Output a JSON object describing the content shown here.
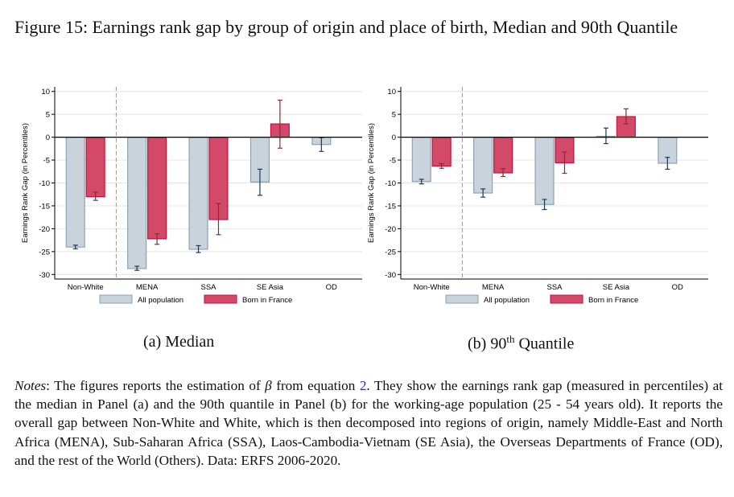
{
  "title": "Figure 15: Earnings rank gap by group of origin and place of birth, Median and 90th Quantile",
  "captions": {
    "a": "(a) Median",
    "b_prefix": "(b) 90",
    "b_sup": "th",
    "b_suffix": " Quantile"
  },
  "notes": {
    "label": "Notes",
    "pre": ": The figures reports the estimation of ",
    "beta": "β",
    "mid": " from equation ",
    "ref": "2",
    "post": ". They show the earnings rank gap (measured in percentiles) at the median in Panel (a) and the 90th quantile in Panel (b) for the working-age population (25 - 54 years old). It reports the overall gap between Non-White and White, which is then decomposed into regions of origin, namely Middle-East and North Africa (MENA), Sub-Saharan Africa (SSA), Laos-Cambodia-Vietnam (SE Asia), the Overseas Departments of France (OD), and the rest of the World (Others). Data: ERFS 2006-2020."
  },
  "colors": {
    "all_fill": "#c9d3dc",
    "all_stroke": "#8ea2b5",
    "all_ci": "#1a3a5c",
    "bif_fill": "#d24a68",
    "bif_stroke": "#c8103c",
    "bif_ci": "#8a2a35"
  },
  "chart_data": [
    {
      "type": "bar",
      "panel": "a",
      "title": "(a) Median",
      "ylabel": "Earnings Rank Gap (in Percentiles)",
      "xlabel": "",
      "ylim": [
        -31,
        11
      ],
      "yticks": [
        10,
        5,
        0,
        -5,
        -10,
        -15,
        -20,
        -25,
        -30
      ],
      "grid": true,
      "legend": "bottom",
      "categories": [
        "Non-White",
        "MENA",
        "SSA",
        "SE Asia",
        "OD"
      ],
      "series": [
        {
          "name": "All population",
          "values": [
            -24.0,
            -28.7,
            -24.5,
            -9.8,
            -1.6
          ],
          "ci_low": [
            -24.4,
            -29.1,
            -25.2,
            -12.7,
            -3.1
          ],
          "ci_high": [
            -23.6,
            -28.2,
            -23.7,
            -7.0,
            -0.1
          ]
        },
        {
          "name": "Born in France",
          "values": [
            -13.0,
            -22.2,
            -18.0,
            2.9,
            null
          ],
          "ci_low": [
            -13.8,
            -23.4,
            -21.3,
            -2.4,
            null
          ],
          "ci_high": [
            -12.0,
            -21.1,
            -14.5,
            8.1,
            null
          ]
        }
      ]
    },
    {
      "type": "bar",
      "panel": "b",
      "title": "(b) 90th Quantile",
      "ylabel": "Earnings Rank Gap (in Percentiles)",
      "xlabel": "",
      "ylim": [
        -31,
        11
      ],
      "yticks": [
        10,
        5,
        0,
        -5,
        -10,
        -15,
        -20,
        -25,
        -30
      ],
      "grid": true,
      "legend": "bottom",
      "categories": [
        "Non-White",
        "MENA",
        "SSA",
        "SE Asia",
        "OD"
      ],
      "series": [
        {
          "name": "All population",
          "values": [
            -9.7,
            -12.2,
            -14.7,
            0.2,
            -5.7
          ],
          "ci_low": [
            -10.2,
            -13.1,
            -15.8,
            -1.4,
            -7.0
          ],
          "ci_high": [
            -9.2,
            -11.3,
            -13.6,
            2.0,
            -4.4
          ]
        },
        {
          "name": "Born in France",
          "values": [
            -6.3,
            -7.8,
            -5.6,
            4.5,
            null
          ],
          "ci_low": [
            -6.8,
            -8.6,
            -7.9,
            2.9,
            null
          ],
          "ci_high": [
            -5.8,
            -6.9,
            -3.2,
            6.2,
            null
          ]
        }
      ]
    }
  ]
}
